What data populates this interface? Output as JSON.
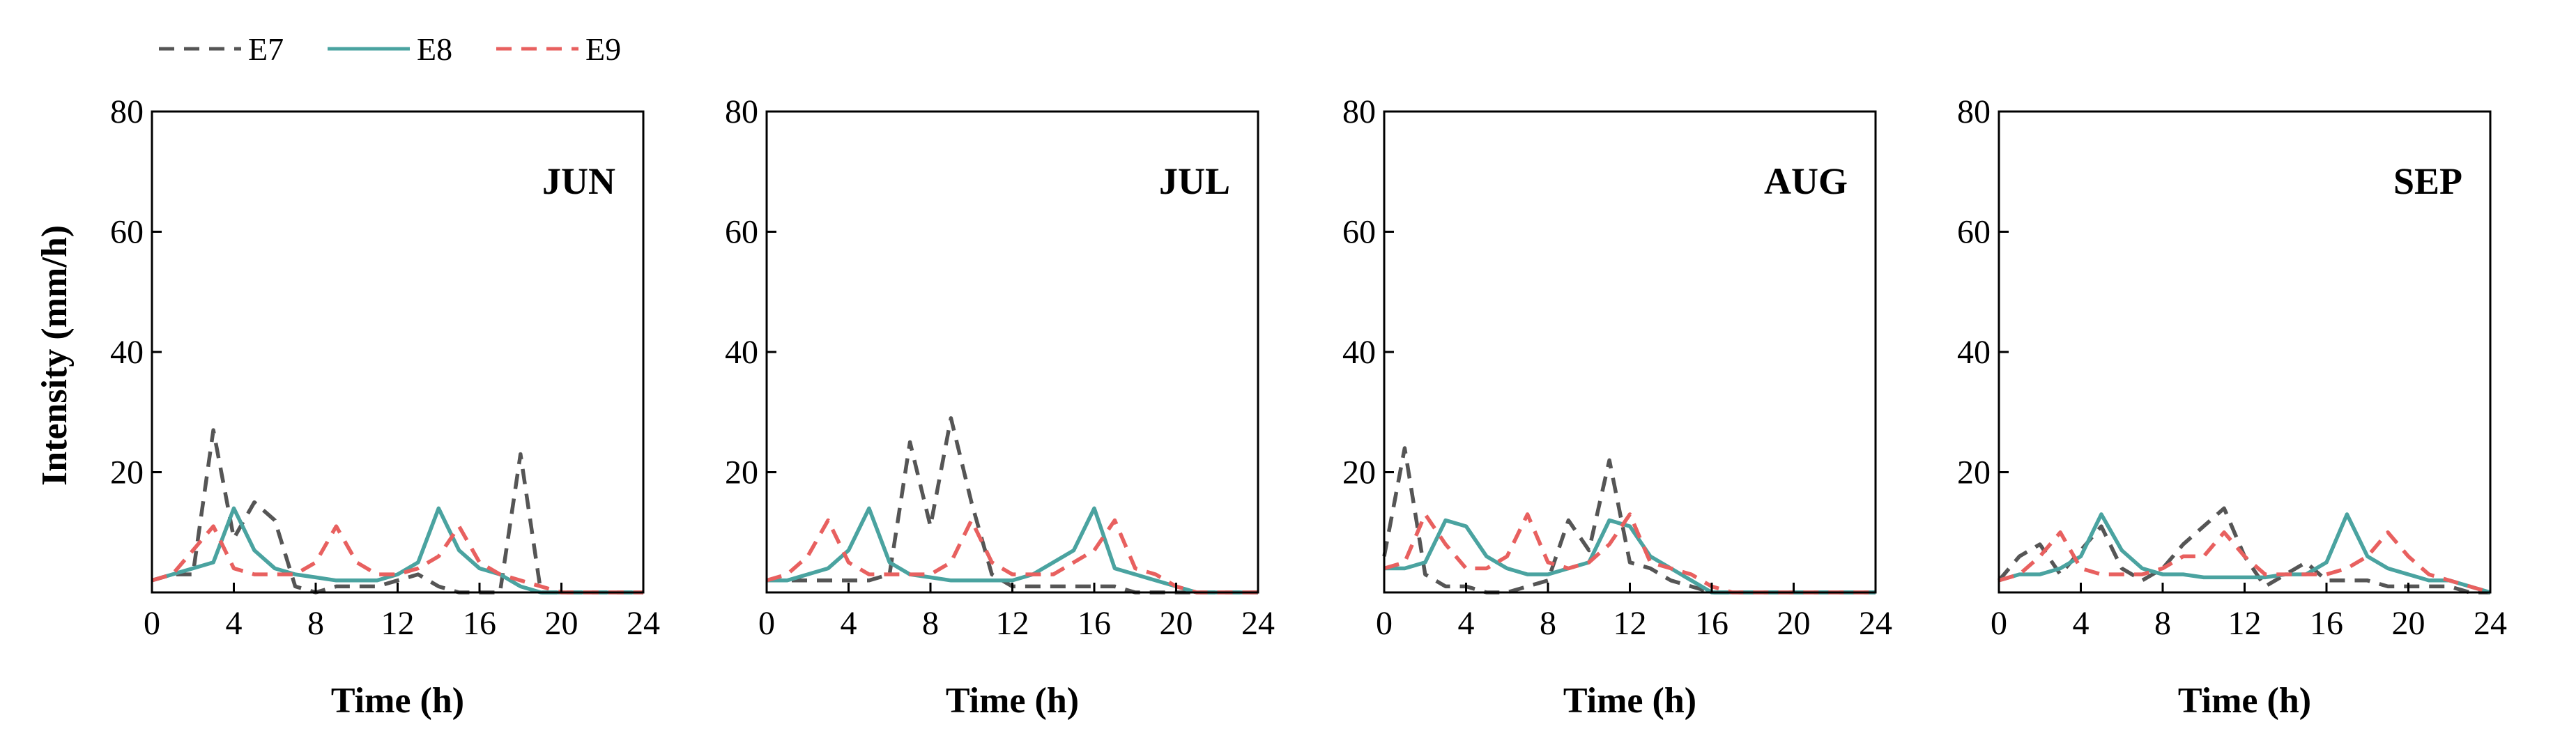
{
  "chart_data": {
    "type": "line",
    "ylabel": "Intensity (mm/h)",
    "xlabel": "Time (h)",
    "xlim": [
      0,
      24
    ],
    "ylim": [
      0,
      80
    ],
    "xticks": [
      "0",
      "4",
      "8",
      "12",
      "16",
      "20",
      "24"
    ],
    "yticks": [
      "20",
      "40",
      "60",
      "80"
    ],
    "legend": [
      {
        "name": "E7",
        "color": "#555555",
        "dash": "dashed"
      },
      {
        "name": "E8",
        "color": "#4aa3a0",
        "dash": "solid"
      },
      {
        "name": "E9",
        "color": "#e8605f",
        "dash": "dashed"
      }
    ],
    "panels": [
      {
        "label": "JUN",
        "series": [
          {
            "name": "E7",
            "x": [
              0,
              1,
              2,
              3,
              4,
              5,
              6,
              7,
              8,
              9,
              10,
              11,
              12,
              13,
              14,
              15,
              16,
              17,
              18,
              19,
              20,
              21,
              22,
              23,
              24
            ],
            "values": [
              2,
              3,
              3,
              27,
              9,
              15,
              12,
              1,
              0,
              1,
              1,
              1,
              2,
              3,
              1,
              0,
              0,
              0,
              23,
              0,
              0,
              0,
              0,
              0,
              0
            ]
          },
          {
            "name": "E8",
            "x": [
              0,
              1,
              2,
              3,
              4,
              5,
              6,
              7,
              8,
              9,
              10,
              11,
              12,
              13,
              14,
              15,
              16,
              17,
              18,
              19,
              20,
              21,
              22,
              23,
              24
            ],
            "values": [
              2,
              3,
              4,
              5,
              14,
              7,
              4,
              3,
              2.5,
              2,
              2,
              2,
              3,
              5,
              14,
              7,
              4,
              3,
              1,
              0,
              0,
              0,
              0,
              0,
              0
            ]
          },
          {
            "name": "E9",
            "x": [
              0,
              1,
              2,
              3,
              4,
              5,
              6,
              7,
              8,
              9,
              10,
              11,
              12,
              13,
              14,
              15,
              16,
              17,
              18,
              19,
              20,
              21,
              22,
              23,
              24
            ],
            "values": [
              2,
              3,
              7,
              11,
              4,
              3,
              3,
              3,
              5,
              11,
              5,
              3,
              3,
              4,
              6,
              11,
              5,
              3,
              2,
              1,
              0,
              0,
              0,
              0,
              0
            ]
          }
        ]
      },
      {
        "label": "JUL",
        "series": [
          {
            "name": "E7",
            "x": [
              0,
              1,
              2,
              3,
              4,
              5,
              6,
              7,
              8,
              9,
              10,
              11,
              12,
              13,
              14,
              15,
              16,
              17,
              18,
              19,
              20,
              21,
              22,
              23,
              24
            ],
            "values": [
              2,
              2,
              2,
              2,
              2,
              2,
              3,
              25,
              11,
              29,
              15,
              3,
              1,
              1,
              1,
              1,
              1,
              1,
              0,
              0,
              0,
              0,
              0,
              0,
              0
            ]
          },
          {
            "name": "E8",
            "x": [
              0,
              1,
              2,
              3,
              4,
              5,
              6,
              7,
              8,
              9,
              10,
              11,
              12,
              13,
              14,
              15,
              16,
              17,
              18,
              19,
              20,
              21,
              22,
              23,
              24
            ],
            "values": [
              2,
              2,
              3,
              4,
              7,
              14,
              5,
              3,
              2.5,
              2,
              2,
              2,
              2,
              3,
              5,
              7,
              14,
              4,
              3,
              2,
              1,
              0,
              0,
              0,
              0
            ]
          },
          {
            "name": "E9",
            "x": [
              0,
              1,
              2,
              3,
              4,
              5,
              6,
              7,
              8,
              9,
              10,
              11,
              12,
              13,
              14,
              15,
              16,
              17,
              18,
              19,
              20,
              21,
              22,
              23,
              24
            ],
            "values": [
              2,
              3,
              6,
              12,
              5,
              3,
              3,
              3,
              3,
              5,
              12,
              5,
              3,
              3,
              3,
              5,
              7,
              12,
              4,
              3,
              1,
              0,
              0,
              0,
              0
            ]
          }
        ]
      },
      {
        "label": "AUG",
        "series": [
          {
            "name": "E7",
            "x": [
              0,
              1,
              2,
              3,
              4,
              5,
              6,
              7,
              8,
              9,
              10,
              11,
              12,
              13,
              14,
              15,
              16,
              17,
              18,
              19,
              20,
              21,
              22,
              23,
              24
            ],
            "values": [
              6,
              24,
              3,
              1,
              1,
              0,
              0,
              1,
              2,
              12,
              7,
              22,
              5,
              4,
              2,
              1,
              0,
              0,
              0,
              0,
              0,
              0,
              0,
              0,
              0
            ]
          },
          {
            "name": "E8",
            "x": [
              0,
              1,
              2,
              3,
              4,
              5,
              6,
              7,
              8,
              9,
              10,
              11,
              12,
              13,
              14,
              15,
              16,
              17,
              18,
              19,
              20,
              21,
              22,
              23,
              24
            ],
            "values": [
              4,
              4,
              5,
              12,
              11,
              6,
              4,
              3,
              3,
              4,
              5,
              12,
              11,
              6,
              4,
              2,
              0,
              0,
              0,
              0,
              0,
              0,
              0,
              0,
              0
            ]
          },
          {
            "name": "E9",
            "x": [
              0,
              1,
              2,
              3,
              4,
              5,
              6,
              7,
              8,
              9,
              10,
              11,
              12,
              13,
              14,
              15,
              16,
              17,
              18,
              19,
              20,
              21,
              22,
              23,
              24
            ],
            "values": [
              4,
              5,
              13,
              8,
              4,
              4,
              6,
              13,
              5,
              4,
              5,
              8,
              13,
              5,
              4,
              3,
              1,
              0,
              0,
              0,
              0,
              0,
              0,
              0,
              0
            ]
          }
        ]
      },
      {
        "label": "SEP",
        "series": [
          {
            "name": "E7",
            "x": [
              0,
              1,
              2,
              3,
              4,
              5,
              6,
              7,
              8,
              9,
              10,
              11,
              12,
              13,
              14,
              15,
              16,
              17,
              18,
              19,
              20,
              21,
              22,
              23,
              24
            ],
            "values": [
              2,
              6,
              8,
              3,
              7,
              11,
              4,
              2,
              4,
              8,
              11,
              14,
              6,
              1,
              3,
              5,
              2,
              2,
              2,
              1,
              1,
              1,
              1,
              0,
              0
            ]
          },
          {
            "name": "E8",
            "x": [
              0,
              1,
              2,
              3,
              4,
              5,
              6,
              7,
              8,
              9,
              10,
              11,
              12,
              13,
              14,
              15,
              16,
              17,
              18,
              19,
              20,
              21,
              22,
              23,
              24
            ],
            "values": [
              2,
              3,
              3,
              4,
              6,
              13,
              7,
              4,
              3,
              3,
              2.5,
              2.5,
              2.5,
              2.5,
              3,
              3,
              5,
              13,
              6,
              4,
              3,
              2,
              2,
              1,
              0
            ]
          },
          {
            "name": "E9",
            "x": [
              0,
              1,
              2,
              3,
              4,
              5,
              6,
              7,
              8,
              9,
              10,
              11,
              12,
              13,
              14,
              15,
              16,
              17,
              18,
              19,
              20,
              21,
              22,
              23,
              24
            ],
            "values": [
              2,
              3,
              6,
              10,
              4,
              3,
              3,
              3,
              4,
              6,
              6,
              10,
              6,
              3,
              3,
              3,
              3,
              4,
              6,
              10,
              6,
              3,
              2,
              1,
              0
            ]
          }
        ]
      }
    ]
  }
}
